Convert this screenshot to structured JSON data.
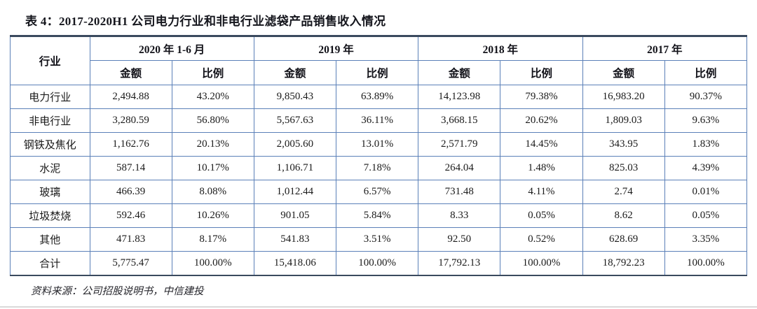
{
  "title": "表 4：2017-2020H1 公司电力行业和非电行业滤袋产品销售收入情况",
  "table": {
    "industry_header": "行业",
    "period_headers": [
      "2020 年 1-6 月",
      "2019 年",
      "2018 年",
      "2017 年"
    ],
    "sub_headers": {
      "amount": "金额",
      "ratio": "比例"
    },
    "rows": [
      {
        "industry": "电力行业",
        "cells": [
          "2,494.88",
          "43.20%",
          "9,850.43",
          "63.89%",
          "14,123.98",
          "79.38%",
          "16,983.20",
          "90.37%"
        ]
      },
      {
        "industry": "非电行业",
        "cells": [
          "3,280.59",
          "56.80%",
          "5,567.63",
          "36.11%",
          "3,668.15",
          "20.62%",
          "1,809.03",
          "9.63%"
        ]
      },
      {
        "industry": "钢铁及焦化",
        "cells": [
          "1,162.76",
          "20.13%",
          "2,005.60",
          "13.01%",
          "2,571.79",
          "14.45%",
          "343.95",
          "1.83%"
        ]
      },
      {
        "industry": "水泥",
        "cells": [
          "587.14",
          "10.17%",
          "1,106.71",
          "7.18%",
          "264.04",
          "1.48%",
          "825.03",
          "4.39%"
        ]
      },
      {
        "industry": "玻璃",
        "cells": [
          "466.39",
          "8.08%",
          "1,012.44",
          "6.57%",
          "731.48",
          "4.11%",
          "2.74",
          "0.01%"
        ]
      },
      {
        "industry": "垃圾焚烧",
        "cells": [
          "592.46",
          "10.26%",
          "901.05",
          "5.84%",
          "8.33",
          "0.05%",
          "8.62",
          "0.05%"
        ]
      },
      {
        "industry": "其他",
        "cells": [
          "471.83",
          "8.17%",
          "541.83",
          "3.51%",
          "92.50",
          "0.52%",
          "628.69",
          "3.35%"
        ]
      },
      {
        "industry": "合计",
        "cells": [
          "5,775.47",
          "100.00%",
          "15,418.06",
          "100.00%",
          "17,792.13",
          "100.00%",
          "18,792.23",
          "100.00%"
        ]
      }
    ]
  },
  "footer": {
    "source_note": "资料来源：公司招股说明书，中信建投"
  },
  "colors": {
    "rule_dark": "#3a4a5e",
    "grid_blue": "#5b80b8",
    "bottom_gray": "#d9d9d9"
  }
}
